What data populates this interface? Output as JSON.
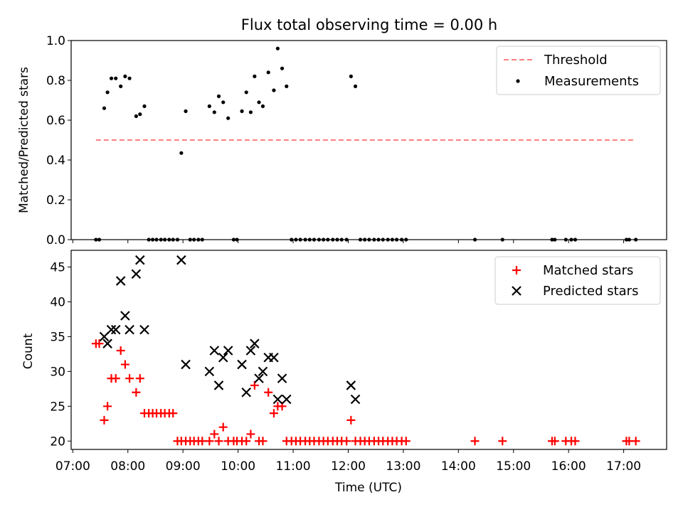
{
  "chart_data": [
    {
      "type": "scatter",
      "title": "Flux total observing time = 0.00 h",
      "xlabel": "",
      "ylabel": "Matched/Predicted stars",
      "xlim": [
        6.97,
        17.78
      ],
      "ylim": [
        0.0,
        1.0
      ],
      "yticks": [
        0.0,
        0.2,
        0.4,
        0.6,
        0.8,
        1.0
      ],
      "ytick_labels": [
        "0.0",
        "0.2",
        "0.4",
        "0.6",
        "0.8",
        "1.0"
      ],
      "legend_position": "top-right",
      "threshold": {
        "name": "Threshold",
        "x": [
          7.42,
          17.2
        ],
        "y": 0.5,
        "color": "#ff7f7f",
        "style": "dashed"
      },
      "series": [
        {
          "name": "Measurements",
          "marker": "dot",
          "color": "#000000",
          "x": [
            7.42,
            7.48,
            7.57,
            7.63,
            7.7,
            7.78,
            7.87,
            7.95,
            8.03,
            8.15,
            8.22,
            8.3,
            8.38,
            8.45,
            8.52,
            8.6,
            8.67,
            8.75,
            8.82,
            8.9,
            8.97,
            9.05,
            9.13,
            9.2,
            9.28,
            9.35,
            9.48,
            9.57,
            9.65,
            9.73,
            9.82,
            9.92,
            9.98,
            10.07,
            10.15,
            10.23,
            10.3,
            10.38,
            10.45,
            10.55,
            10.65,
            10.72,
            10.8,
            10.88,
            10.97,
            11.05,
            11.13,
            11.22,
            11.3,
            11.38,
            11.47,
            11.55,
            11.63,
            11.72,
            11.8,
            11.88,
            11.97,
            12.05,
            12.13,
            12.22,
            12.3,
            12.38,
            12.47,
            12.55,
            12.63,
            12.72,
            12.8,
            12.88,
            12.97,
            13.05,
            14.3,
            14.8,
            15.7,
            15.75,
            15.95,
            16.05,
            16.12,
            17.05,
            17.1,
            17.22
          ],
          "y": [
            0.0,
            0.0,
            0.66,
            0.74,
            0.81,
            0.81,
            0.77,
            0.82,
            0.81,
            0.62,
            0.63,
            0.67,
            0.0,
            0.0,
            0.0,
            0.0,
            0.0,
            0.0,
            0.0,
            0.0,
            0.435,
            0.645,
            0.0,
            0.0,
            0.0,
            0.0,
            0.67,
            0.64,
            0.72,
            0.69,
            0.61,
            0.0,
            0.0,
            0.645,
            0.74,
            0.64,
            0.82,
            0.69,
            0.67,
            0.84,
            0.75,
            0.96,
            0.86,
            0.77,
            0.0,
            0.0,
            0.0,
            0.0,
            0.0,
            0.0,
            0.0,
            0.0,
            0.0,
            0.0,
            0.0,
            0.0,
            0.0,
            0.82,
            0.77,
            0.0,
            0.0,
            0.0,
            0.0,
            0.0,
            0.0,
            0.0,
            0.0,
            0.0,
            0.0,
            0.0,
            0.0,
            0.0,
            0.0,
            0.0,
            0.0,
            0.0,
            0.0,
            0.0,
            0.0,
            0.0
          ]
        }
      ]
    },
    {
      "type": "scatter",
      "title": "",
      "xlabel": "Time (UTC)",
      "ylabel": "Count",
      "xlim": [
        6.97,
        17.78
      ],
      "ylim": [
        18.8,
        47.4
      ],
      "xticks": [
        7,
        8,
        9,
        10,
        11,
        12,
        13,
        14,
        15,
        16,
        17
      ],
      "xtick_labels": [
        "07:00",
        "08:00",
        "09:00",
        "10:00",
        "11:00",
        "12:00",
        "13:00",
        "14:00",
        "15:00",
        "16:00",
        "17:00"
      ],
      "yticks": [
        20,
        25,
        30,
        35,
        40,
        45
      ],
      "ytick_labels": [
        "20",
        "25",
        "30",
        "35",
        "40",
        "45"
      ],
      "legend_position": "top-right",
      "series": [
        {
          "name": "Matched stars",
          "marker": "plus",
          "color": "#ff0000",
          "x": [
            7.42,
            7.48,
            7.57,
            7.63,
            7.7,
            7.78,
            7.87,
            7.95,
            8.03,
            8.15,
            8.22,
            8.3,
            8.38,
            8.45,
            8.52,
            8.6,
            8.67,
            8.75,
            8.82,
            8.9,
            8.97,
            9.05,
            9.13,
            9.2,
            9.28,
            9.35,
            9.48,
            9.57,
            9.65,
            9.73,
            9.82,
            9.92,
            9.98,
            10.07,
            10.15,
            10.23,
            10.3,
            10.38,
            10.45,
            10.55,
            10.65,
            10.72,
            10.8,
            10.88,
            10.97,
            11.05,
            11.13,
            11.22,
            11.3,
            11.38,
            11.47,
            11.55,
            11.63,
            11.72,
            11.8,
            11.88,
            11.97,
            12.05,
            12.13,
            12.22,
            12.3,
            12.38,
            12.47,
            12.55,
            12.63,
            12.72,
            12.8,
            12.88,
            12.97,
            13.05,
            14.3,
            14.8,
            15.7,
            15.75,
            15.95,
            16.05,
            16.12,
            17.05,
            17.1,
            17.22
          ],
          "y": [
            34,
            34,
            23,
            25,
            29,
            29,
            33,
            31,
            29,
            27,
            29,
            24,
            24,
            24,
            24,
            24,
            24,
            24,
            24,
            20,
            20,
            20,
            20,
            20,
            20,
            20,
            20,
            21,
            20,
            22,
            20,
            20,
            20,
            20,
            20,
            21,
            28,
            20,
            20,
            27,
            24,
            25,
            25,
            20,
            20,
            20,
            20,
            20,
            20,
            20,
            20,
            20,
            20,
            20,
            20,
            20,
            20,
            23,
            20,
            20,
            20,
            20,
            20,
            20,
            20,
            20,
            20,
            20,
            20,
            20,
            20,
            20,
            20,
            20,
            20,
            20,
            20,
            20,
            20,
            20
          ]
        },
        {
          "name": "Predicted stars",
          "marker": "x",
          "color": "#000000",
          "x": [
            7.57,
            7.63,
            7.7,
            7.78,
            7.87,
            7.95,
            8.03,
            8.15,
            8.22,
            8.3,
            8.97,
            9.05,
            9.48,
            9.57,
            9.65,
            9.73,
            9.82,
            10.07,
            10.15,
            10.23,
            10.3,
            10.38,
            10.45,
            10.55,
            10.65,
            10.72,
            10.8,
            10.88,
            12.05,
            12.13
          ],
          "y": [
            35,
            34,
            36,
            36,
            43,
            38,
            36,
            44,
            46,
            36,
            46,
            31,
            30,
            33,
            28,
            32,
            33,
            31,
            27,
            33,
            34,
            29,
            30,
            32,
            32,
            26,
            29,
            26,
            28,
            26
          ]
        }
      ]
    }
  ]
}
